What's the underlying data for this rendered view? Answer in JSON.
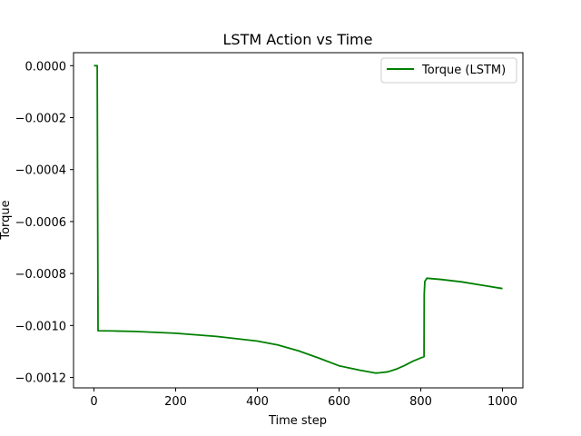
{
  "chart_data": {
    "type": "line",
    "title": "LSTM Action vs Time",
    "xlabel": "Time step",
    "ylabel": "Torque",
    "xlim": [
      -50,
      1050
    ],
    "ylim": [
      -0.00124,
      5e-05
    ],
    "x_ticks": [
      0,
      200,
      400,
      600,
      800,
      1000
    ],
    "x_tick_labels": [
      "0",
      "200",
      "400",
      "600",
      "800",
      "1000"
    ],
    "y_ticks": [
      0,
      -0.0002,
      -0.0004,
      -0.0006,
      -0.0008,
      -0.001,
      -0.0012
    ],
    "y_tick_labels": [
      "0.0000",
      "−0.0002",
      "−0.0004",
      "−0.0006",
      "−0.0008",
      "−0.0010",
      "−0.0012"
    ],
    "grid": false,
    "legend": {
      "placement": "top-right",
      "entries": [
        "Torque (LSTM)"
      ]
    },
    "series": [
      {
        "name": "Torque (LSTM)",
        "color": "#008000",
        "x": [
          0,
          5,
          8,
          10,
          50,
          100,
          200,
          300,
          400,
          450,
          500,
          550,
          600,
          650,
          690,
          700,
          720,
          740,
          760,
          780,
          800,
          808,
          808.5,
          810,
          815,
          850,
          900,
          950,
          1000
        ],
        "y": [
          0,
          0,
          0,
          -0.00102,
          -0.001021,
          -0.001023,
          -0.00103,
          -0.001042,
          -0.00106,
          -0.001075,
          -0.001097,
          -0.001125,
          -0.001155,
          -0.001172,
          -0.001183,
          -0.001182,
          -0.001178,
          -0.001168,
          -0.001154,
          -0.001138,
          -0.001125,
          -0.00112,
          -0.00088,
          -0.00083,
          -0.000818,
          -0.000823,
          -0.000832,
          -0.000845,
          -0.000858
        ]
      }
    ]
  }
}
